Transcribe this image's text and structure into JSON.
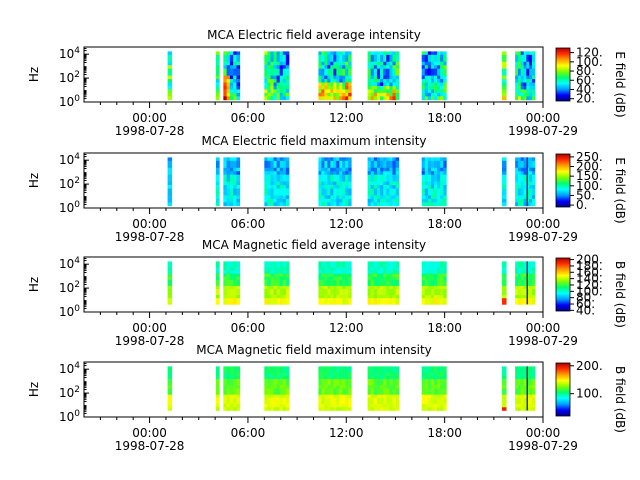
{
  "chart_data": [
    {
      "type": "heatmap",
      "title": "MCA  Electric field average intensity",
      "ylabel": "Hz",
      "colorbar_label": "E field (dB)",
      "colorbar_ticks": [
        "20.",
        "40.",
        "60.",
        "80.",
        "100.",
        "120."
      ],
      "colorbar_range": [
        15,
        130
      ],
      "y_ticks": [
        "10^0",
        "10^2",
        "10^4"
      ],
      "y_range_log10": [
        0,
        4.6
      ],
      "x_range_hours": [
        -4,
        24
      ]
    },
    {
      "type": "heatmap",
      "title": "MCA  Electric field maximum intensity",
      "ylabel": "Hz",
      "colorbar_label": "E field (dB)",
      "colorbar_ticks": [
        "0.",
        "50.",
        "100.",
        "150.",
        "200.",
        "250."
      ],
      "colorbar_range": [
        -10,
        265
      ],
      "y_ticks": [
        "10^0",
        "10^2",
        "10^4"
      ],
      "y_range_log10": [
        0,
        4.6
      ],
      "x_range_hours": [
        -4,
        24
      ]
    },
    {
      "type": "heatmap",
      "title": "MCA  Magnetic field average intensity",
      "ylabel": "Hz",
      "colorbar_label": "B field (dB)",
      "colorbar_ticks": [
        "40.",
        "60.",
        "80.",
        "100.",
        "120.",
        "140.",
        "160.",
        "180.",
        "200."
      ],
      "colorbar_range": [
        38,
        205
      ],
      "y_ticks": [
        "10^0",
        "10^2",
        "10^4"
      ],
      "y_range_log10": [
        0,
        4.6
      ],
      "x_range_hours": [
        -4,
        24
      ]
    },
    {
      "type": "heatmap",
      "title": "MCA  Magnetic field maximum intensity",
      "ylabel": "Hz",
      "colorbar_label": "B field (dB)",
      "colorbar_ticks": [
        "100.",
        "200."
      ],
      "colorbar_range": [
        20,
        210
      ],
      "y_ticks": [
        "10^0",
        "10^2",
        "10^4"
      ],
      "y_range_log10": [
        0,
        4.6
      ],
      "x_range_hours": [
        -4,
        24
      ]
    }
  ],
  "x_axis": {
    "tick_labels": [
      "00:00",
      "06:00",
      "12:00",
      "18:00",
      "00:00"
    ],
    "tick_hours": [
      0,
      6,
      12,
      18,
      24
    ],
    "date_start": "1998-07-28",
    "date_end": "1998-07-29"
  },
  "data_intervals_hours": [
    [
      1.1,
      1.35
    ],
    [
      4.05,
      4.25
    ],
    [
      4.5,
      5.5
    ],
    [
      7.0,
      8.5
    ],
    [
      10.3,
      12.3
    ],
    [
      13.3,
      15.2
    ],
    [
      16.6,
      18.1
    ],
    [
      21.5,
      21.75
    ],
    [
      22.3,
      23.5
    ]
  ],
  "colormap": [
    "#00007f",
    "#0000ff",
    "#00a0ff",
    "#00ffff",
    "#00ff70",
    "#7fff00",
    "#ffff00",
    "#ffa000",
    "#ff3000",
    "#b00000"
  ]
}
